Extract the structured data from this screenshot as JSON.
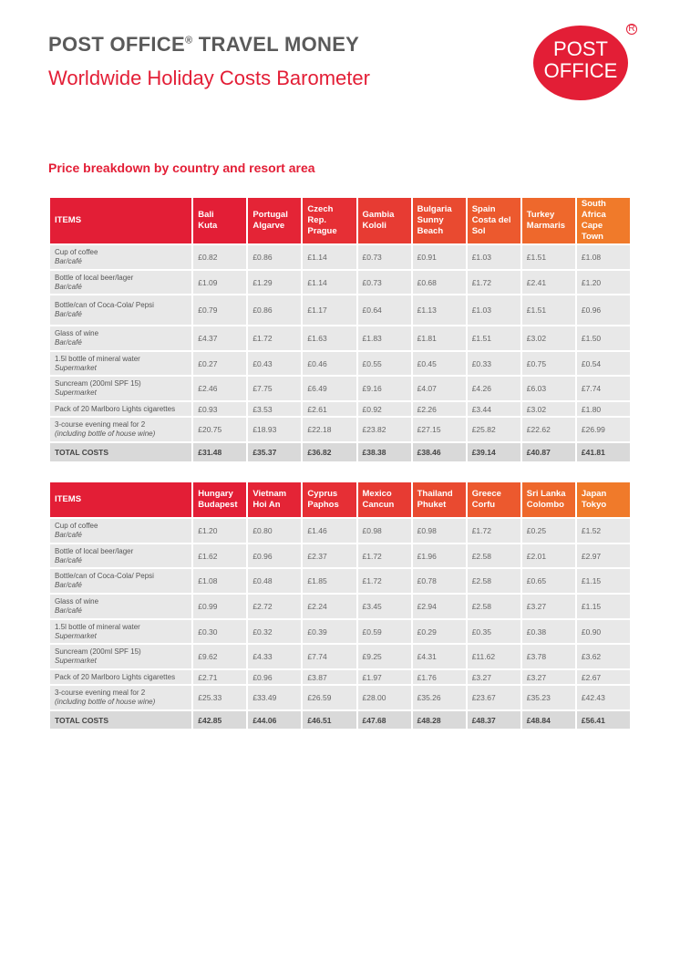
{
  "header": {
    "brand": "POST OFFICE",
    "reg": "®",
    "brand_rest": " TRAVEL MONEY",
    "subtitle": "Worldwide Holiday Costs Barometer"
  },
  "logo": {
    "line1": "POST",
    "line2": "OFFICE",
    "reg": "R"
  },
  "section_title": "Price breakdown by country and resort area",
  "colors": {
    "red": "#e31e36",
    "orange": "#f07a2a",
    "cell": "#e8e8e8",
    "total": "#d9d9d9"
  },
  "items_header": "ITEMS",
  "items": [
    {
      "name": "Cup of coffee",
      "sub": "Bar/café"
    },
    {
      "name": "Bottle of local beer/lager",
      "sub": "Bar/café"
    },
    {
      "name": "Bottle/can of Coca-Cola/ Pepsi",
      "sub": "Bar/café"
    },
    {
      "name": "Glass of wine",
      "sub": "Bar/café"
    },
    {
      "name": "1.5l bottle of mineral water",
      "sub": "Supermarket"
    },
    {
      "name": "Suncream (200ml SPF 15)",
      "sub": "Supermarket"
    },
    {
      "name": "Pack of 20 Marlboro Lights cigarettes",
      "sub": ""
    },
    {
      "name": "3-course evening meal for 2",
      "sub": "(including bottle of house wine)"
    }
  ],
  "total_label": "TOTAL COSTS",
  "tables": [
    {
      "columns": [
        {
          "country": "Bali",
          "resort": "Kuta",
          "values": [
            "£0.82",
            "£1.09",
            "£0.79",
            "£4.37",
            "£0.27",
            "£2.46",
            "£0.93",
            "£20.75"
          ],
          "total": "£31.48"
        },
        {
          "country": "Portugal",
          "resort": "Algarve",
          "values": [
            "£0.86",
            "£1.29",
            "£0.86",
            "£1.72",
            "£0.43",
            "£7.75",
            "£3.53",
            "£18.93"
          ],
          "total": "£35.37"
        },
        {
          "country": "Czech Rep.",
          "resort": "Prague",
          "values": [
            "£1.14",
            "£1.14",
            "£1.17",
            "£1.63",
            "£0.46",
            "£6.49",
            "£2.61",
            "£22.18"
          ],
          "total": "£36.82"
        },
        {
          "country": "Gambia",
          "resort": "Kololi",
          "values": [
            "£0.73",
            "£0.73",
            "£0.64",
            "£1.83",
            "£0.55",
            "£9.16",
            "£0.92",
            "£23.82"
          ],
          "total": "£38.38"
        },
        {
          "country": "Bulgaria",
          "resort": "Sunny Beach",
          "values": [
            "£0.91",
            "£0.68",
            "£1.13",
            "£1.81",
            "£0.45",
            "£4.07",
            "£2.26",
            "£27.15"
          ],
          "total": "£38.46"
        },
        {
          "country": "Spain",
          "resort": "Costa del Sol",
          "values": [
            "£1.03",
            "£1.72",
            "£1.03",
            "£1.51",
            "£0.33",
            "£4.26",
            "£3.44",
            "£25.82"
          ],
          "total": "£39.14"
        },
        {
          "country": "Turkey",
          "resort": "Marmaris",
          "values": [
            "£1.51",
            "£2.41",
            "£1.51",
            "£3.02",
            "£0.75",
            "£6.03",
            "£3.02",
            "£22.62"
          ],
          "total": "£40.87"
        },
        {
          "country": "South Africa",
          "resort": "Cape Town",
          "values": [
            "£1.08",
            "£1.20",
            "£0.96",
            "£1.50",
            "£0.54",
            "£7.74",
            "£1.80",
            "£26.99"
          ],
          "total": "£41.81"
        }
      ]
    },
    {
      "columns": [
        {
          "country": "Hungary",
          "resort": "Budapest",
          "values": [
            "£1.20",
            "£1.62",
            "£1.08",
            "£0.99",
            "£0.30",
            "£9.62",
            "£2.71",
            "£25.33"
          ],
          "total": "£42.85"
        },
        {
          "country": "Vietnam",
          "resort": "Hoi An",
          "values": [
            "£0.80",
            "£0.96",
            "£0.48",
            "£2.72",
            "£0.32",
            "£4.33",
            "£0.96",
            "£33.49"
          ],
          "total": "£44.06"
        },
        {
          "country": "Cyprus",
          "resort": "Paphos",
          "values": [
            "£1.46",
            "£2.37",
            "£1.85",
            "£2.24",
            "£0.39",
            "£7.74",
            "£3.87",
            "£26.59"
          ],
          "total": "£46.51"
        },
        {
          "country": "Mexico",
          "resort": "Cancun",
          "values": [
            "£0.98",
            "£1.72",
            "£1.72",
            "£3.45",
            "£0.59",
            "£9.25",
            "£1.97",
            "£28.00"
          ],
          "total": "£47.68"
        },
        {
          "country": "Thailand",
          "resort": "Phuket",
          "values": [
            "£0.98",
            "£1.96",
            "£0.78",
            "£2.94",
            "£0.29",
            "£4.31",
            "£1.76",
            "£35.26"
          ],
          "total": "£48.28"
        },
        {
          "country": "Greece",
          "resort": "Corfu",
          "values": [
            "£1.72",
            "£2.58",
            "£2.58",
            "£2.58",
            "£0.35",
            "£11.62",
            "£3.27",
            "£23.67"
          ],
          "total": "£48.37"
        },
        {
          "country": "Sri Lanka",
          "resort": "Colombo",
          "values": [
            "£0.25",
            "£2.01",
            "£0.65",
            "£3.27",
            "£0.38",
            "£3.78",
            "£3.27",
            "£35.23"
          ],
          "total": "£48.84"
        },
        {
          "country": "Japan",
          "resort": "Tokyo",
          "values": [
            "£1.52",
            "£2.97",
            "£1.15",
            "£1.15",
            "£0.90",
            "£3.62",
            "£2.67",
            "£42.43"
          ],
          "total": "£56.41"
        }
      ]
    }
  ]
}
